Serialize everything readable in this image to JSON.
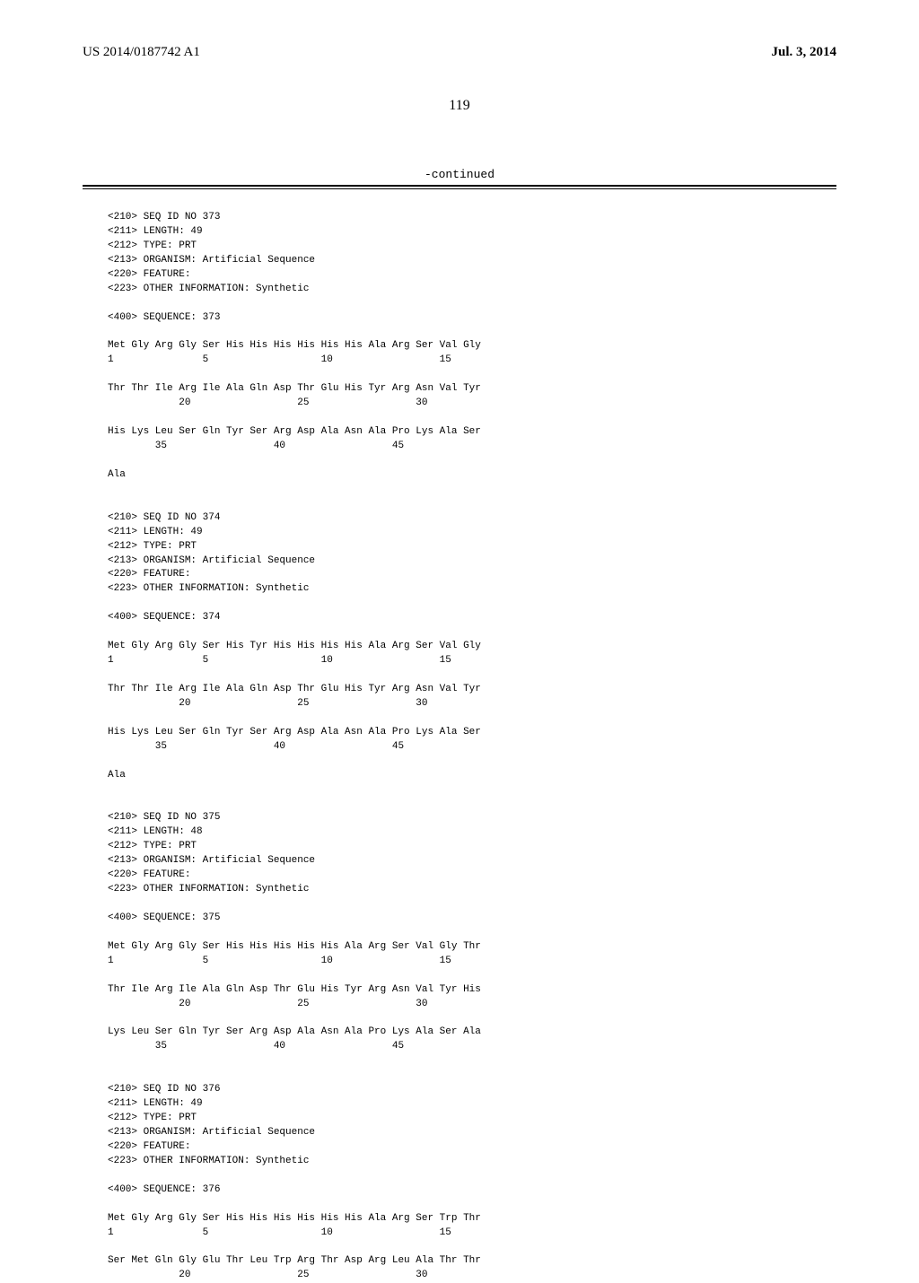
{
  "header": {
    "publication_number": "US 2014/0187742 A1",
    "publication_date": "Jul. 3, 2014"
  },
  "page_number": "119",
  "continued_label": "-continued",
  "sequences": [
    {
      "meta": [
        "<210> SEQ ID NO 373",
        "<211> LENGTH: 49",
        "<212> TYPE: PRT",
        "<213> ORGANISM: Artificial Sequence",
        "<220> FEATURE:",
        "<223> OTHER INFORMATION: Synthetic"
      ],
      "seq_label": "<400> SEQUENCE: 373",
      "lines": [
        "Met Gly Arg Gly Ser His His His His His His Ala Arg Ser Val Gly",
        "1               5                   10                  15",
        "",
        "Thr Thr Ile Arg Ile Ala Gln Asp Thr Glu His Tyr Arg Asn Val Tyr",
        "            20                  25                  30",
        "",
        "His Lys Leu Ser Gln Tyr Ser Arg Asp Ala Asn Ala Pro Lys Ala Ser",
        "        35                  40                  45",
        "",
        "Ala"
      ]
    },
    {
      "meta": [
        "<210> SEQ ID NO 374",
        "<211> LENGTH: 49",
        "<212> TYPE: PRT",
        "<213> ORGANISM: Artificial Sequence",
        "<220> FEATURE:",
        "<223> OTHER INFORMATION: Synthetic"
      ],
      "seq_label": "<400> SEQUENCE: 374",
      "lines": [
        "Met Gly Arg Gly Ser His Tyr His His His His Ala Arg Ser Val Gly",
        "1               5                   10                  15",
        "",
        "Thr Thr Ile Arg Ile Ala Gln Asp Thr Glu His Tyr Arg Asn Val Tyr",
        "            20                  25                  30",
        "",
        "His Lys Leu Ser Gln Tyr Ser Arg Asp Ala Asn Ala Pro Lys Ala Ser",
        "        35                  40                  45",
        "",
        "Ala"
      ]
    },
    {
      "meta": [
        "<210> SEQ ID NO 375",
        "<211> LENGTH: 48",
        "<212> TYPE: PRT",
        "<213> ORGANISM: Artificial Sequence",
        "<220> FEATURE:",
        "<223> OTHER INFORMATION: Synthetic"
      ],
      "seq_label": "<400> SEQUENCE: 375",
      "lines": [
        "Met Gly Arg Gly Ser His His His His His Ala Arg Ser Val Gly Thr",
        "1               5                   10                  15",
        "",
        "Thr Ile Arg Ile Ala Gln Asp Thr Glu His Tyr Arg Asn Val Tyr His",
        "            20                  25                  30",
        "",
        "Lys Leu Ser Gln Tyr Ser Arg Asp Ala Asn Ala Pro Lys Ala Ser Ala",
        "        35                  40                  45"
      ]
    },
    {
      "meta": [
        "<210> SEQ ID NO 376",
        "<211> LENGTH: 49",
        "<212> TYPE: PRT",
        "<213> ORGANISM: Artificial Sequence",
        "<220> FEATURE:",
        "<223> OTHER INFORMATION: Synthetic"
      ],
      "seq_label": "<400> SEQUENCE: 376",
      "lines": [
        "Met Gly Arg Gly Ser His His His His His His Ala Arg Ser Trp Thr",
        "1               5                   10                  15",
        "",
        "Ser Met Gln Gly Glu Thr Leu Trp Arg Thr Asp Arg Leu Ala Thr Thr",
        "            20                  25                  30"
      ]
    }
  ]
}
